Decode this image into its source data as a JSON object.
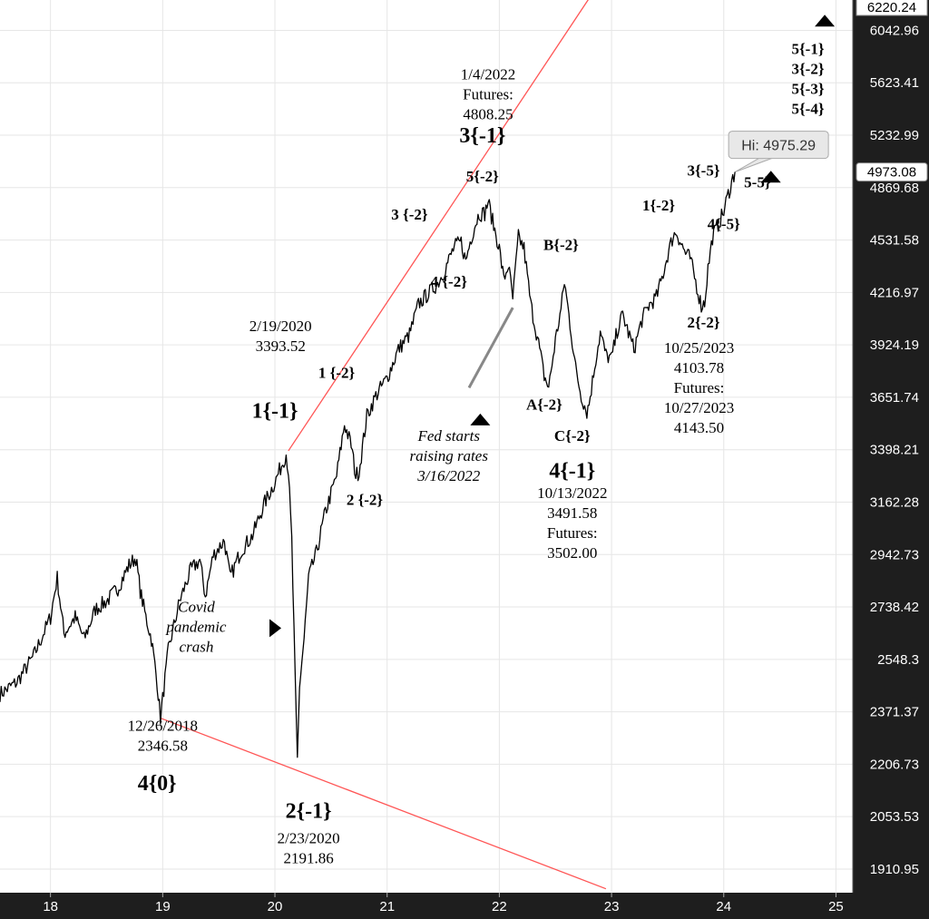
{
  "chart_data": {
    "type": "line",
    "grid": true,
    "y_scale": "log",
    "ylim": [
      1850,
      6300
    ],
    "xlim": [
      2017.55,
      2025.15
    ],
    "x_ticks": [
      "18",
      "19",
      "20",
      "21",
      "22",
      "23",
      "24",
      "25"
    ],
    "y_ticks": [
      "6042.96",
      "5623.41",
      "5232.99",
      "4869.68",
      "4531.58",
      "4216.97",
      "3924.19",
      "3651.74",
      "3398.21",
      "3162.28",
      "2942.73",
      "2738.42",
      "2548.3",
      "2371.37",
      "2206.73",
      "2053.53",
      "1910.95"
    ],
    "top_badge": "6220.24",
    "last_price_badge": "4973.08",
    "high_callout": "Hi: 4975.29",
    "series": [
      {
        "color": "#000000",
        "points": [
          [
            2017.55,
            2430
          ],
          [
            2017.7,
            2470
          ],
          [
            2017.85,
            2560
          ],
          [
            2018.0,
            2700
          ],
          [
            2018.06,
            2850
          ],
          [
            2018.12,
            2640
          ],
          [
            2018.22,
            2700
          ],
          [
            2018.3,
            2620
          ],
          [
            2018.4,
            2730
          ],
          [
            2018.5,
            2760
          ],
          [
            2018.6,
            2810
          ],
          [
            2018.7,
            2900
          ],
          [
            2018.76,
            2930
          ],
          [
            2018.8,
            2800
          ],
          [
            2018.85,
            2700
          ],
          [
            2018.9,
            2620
          ],
          [
            2018.95,
            2470
          ],
          [
            2018.98,
            2351
          ],
          [
            2019.05,
            2580
          ],
          [
            2019.15,
            2760
          ],
          [
            2019.25,
            2880
          ],
          [
            2019.33,
            2920
          ],
          [
            2019.38,
            2780
          ],
          [
            2019.45,
            2940
          ],
          [
            2019.55,
            3000
          ],
          [
            2019.6,
            2850
          ],
          [
            2019.7,
            2960
          ],
          [
            2019.8,
            3020
          ],
          [
            2019.9,
            3150
          ],
          [
            2020.0,
            3250
          ],
          [
            2020.1,
            3380
          ],
          [
            2020.12,
            3300
          ],
          [
            2020.15,
            3000
          ],
          [
            2020.18,
            2480
          ],
          [
            2020.2,
            2220
          ],
          [
            2020.22,
            2460
          ],
          [
            2020.26,
            2620
          ],
          [
            2020.3,
            2850
          ],
          [
            2020.37,
            2950
          ],
          [
            2020.45,
            3120
          ],
          [
            2020.55,
            3280
          ],
          [
            2020.62,
            3520
          ],
          [
            2020.68,
            3420
          ],
          [
            2020.72,
            3280
          ],
          [
            2020.75,
            3300
          ],
          [
            2020.82,
            3560
          ],
          [
            2020.9,
            3660
          ],
          [
            2021.0,
            3750
          ],
          [
            2021.1,
            3900
          ],
          [
            2021.2,
            3980
          ],
          [
            2021.28,
            4150
          ],
          [
            2021.38,
            4220
          ],
          [
            2021.45,
            4270
          ],
          [
            2021.5,
            4330
          ],
          [
            2021.55,
            4410
          ],
          [
            2021.6,
            4490
          ],
          [
            2021.66,
            4520
          ],
          [
            2021.7,
            4400
          ],
          [
            2021.74,
            4520
          ],
          [
            2021.78,
            4620
          ],
          [
            2021.82,
            4700
          ],
          [
            2021.87,
            4700
          ],
          [
            2021.9,
            4780
          ],
          [
            2021.94,
            4650
          ],
          [
            2022.0,
            4480
          ],
          [
            2022.04,
            4290
          ],
          [
            2022.08,
            4380
          ],
          [
            2022.12,
            4180
          ],
          [
            2022.17,
            4550
          ],
          [
            2022.22,
            4480
          ],
          [
            2022.28,
            4150
          ],
          [
            2022.35,
            3930
          ],
          [
            2022.4,
            3760
          ],
          [
            2022.44,
            3700
          ],
          [
            2022.5,
            3950
          ],
          [
            2022.55,
            4120
          ],
          [
            2022.58,
            4280
          ],
          [
            2022.62,
            4090
          ],
          [
            2022.68,
            3800
          ],
          [
            2022.73,
            3660
          ],
          [
            2022.78,
            3580
          ],
          [
            2022.8,
            3620
          ],
          [
            2022.86,
            3850
          ],
          [
            2022.9,
            3990
          ],
          [
            2022.95,
            3870
          ],
          [
            2023.0,
            3850
          ],
          [
            2023.05,
            4000
          ],
          [
            2023.1,
            4090
          ],
          [
            2023.15,
            3990
          ],
          [
            2023.2,
            3900
          ],
          [
            2023.27,
            4060
          ],
          [
            2023.33,
            4140
          ],
          [
            2023.4,
            4190
          ],
          [
            2023.45,
            4300
          ],
          [
            2023.5,
            4440
          ],
          [
            2023.55,
            4560
          ],
          [
            2023.58,
            4580
          ],
          [
            2023.62,
            4510
          ],
          [
            2023.66,
            4450
          ],
          [
            2023.7,
            4420
          ],
          [
            2023.75,
            4280
          ],
          [
            2023.8,
            4140
          ],
          [
            2023.83,
            4160
          ],
          [
            2023.86,
            4360
          ],
          [
            2023.9,
            4550
          ],
          [
            2023.95,
            4630
          ],
          [
            2024.0,
            4710
          ],
          [
            2024.03,
            4800
          ],
          [
            2024.08,
            4930
          ],
          [
            2024.1,
            4975
          ]
        ]
      }
    ],
    "trendlines": [
      {
        "color": "#ff5555",
        "points": [
          [
            2020.12,
            3393
          ],
          [
            2023.6,
            7600
          ]
        ]
      },
      {
        "color": "#ff5555",
        "points": [
          [
            2018.98,
            2351
          ],
          [
            2022.95,
            1860
          ]
        ]
      }
    ],
    "annotations": [
      {
        "lines": [
          "1/4/2022",
          "Futures:",
          "4808.25"
        ],
        "x": 2021.9,
        "y": 5650
      },
      {
        "lines": [
          "3{-1}"
        ],
        "x": 2021.85,
        "y": 5180,
        "size": "large"
      },
      {
        "lines": [
          "5{-2}"
        ],
        "x": 2021.85,
        "y": 4910
      },
      {
        "lines": [
          "3 {-2}"
        ],
        "x": 2021.2,
        "y": 4660
      },
      {
        "lines": [
          "4 {-2}"
        ],
        "x": 2021.55,
        "y": 4250
      },
      {
        "lines": [
          "B{-2}"
        ],
        "x": 2022.55,
        "y": 4470
      },
      {
        "lines": [
          "2/19/2020",
          "3393.52"
        ],
        "x": 2020.05,
        "y": 4000
      },
      {
        "lines": [
          "1 {-2}"
        ],
        "x": 2020.55,
        "y": 3750
      },
      {
        "lines": [
          "1{-1}"
        ],
        "x": 2020.0,
        "y": 3550,
        "size": "large"
      },
      {
        "lines": [
          "2 {-2}"
        ],
        "x": 2020.8,
        "y": 3150
      },
      {
        "lines": [
          "A{-2}"
        ],
        "x": 2022.4,
        "y": 3590
      },
      {
        "lines": [
          "C{-2}"
        ],
        "x": 2022.65,
        "y": 3440
      },
      {
        "lines": [
          "4{-1}"
        ],
        "x": 2022.65,
        "y": 3270,
        "size": "large"
      },
      {
        "lines": [
          "10/13/2022",
          "3491.58",
          "Futures:",
          "3502.00"
        ],
        "x": 2022.65,
        "y": 3180
      },
      {
        "lines": [
          "Fed starts",
          "raising rates",
          "3/16/2022"
        ],
        "x": 2021.55,
        "y": 3440,
        "italic": true
      },
      {
        "lines": [
          "1{-2}"
        ],
        "x": 2023.42,
        "y": 4720
      },
      {
        "lines": [
          "3{-5}"
        ],
        "x": 2023.82,
        "y": 4950
      },
      {
        "lines": [
          "4{-5}"
        ],
        "x": 2024.0,
        "y": 4600
      },
      {
        "lines": [
          "2{-2}"
        ],
        "x": 2023.82,
        "y": 4020
      },
      {
        "lines": [
          "10/25/2023",
          "4103.78",
          "Futures:",
          "10/27/2023",
          "4143.50"
        ],
        "x": 2023.78,
        "y": 3880
      },
      {
        "lines": [
          "5-5}"
        ],
        "x": 2024.3,
        "y": 4870
      },
      {
        "lines": [
          "5{-1}",
          "3{-2}",
          "5{-3}",
          "5{-4}"
        ],
        "x": 2024.75,
        "y": 5850
      },
      {
        "lines": [
          "Covid",
          "pandemic",
          "crash"
        ],
        "x": 2019.3,
        "y": 2720,
        "italic": true
      },
      {
        "lines": [
          "12/26/2018",
          "2346.58"
        ],
        "x": 2019.0,
        "y": 2310
      },
      {
        "lines": [
          "4{0}"
        ],
        "x": 2018.95,
        "y": 2130,
        "size": "large"
      },
      {
        "lines": [
          "2{-1}"
        ],
        "x": 2020.3,
        "y": 2050,
        "size": "large"
      },
      {
        "lines": [
          "2/23/2020",
          "2191.86"
        ],
        "x": 2020.3,
        "y": 1980
      }
    ],
    "markers": [
      {
        "shape": "triangle-up",
        "x": 2021.83,
        "y": 3540
      },
      {
        "shape": "triangle-right",
        "x": 2020.0,
        "y": 2660
      },
      {
        "shape": "triangle-up",
        "x": 2024.42,
        "y": 4940
      },
      {
        "shape": "triangle-up",
        "x": 2024.9,
        "y": 6120
      }
    ]
  }
}
